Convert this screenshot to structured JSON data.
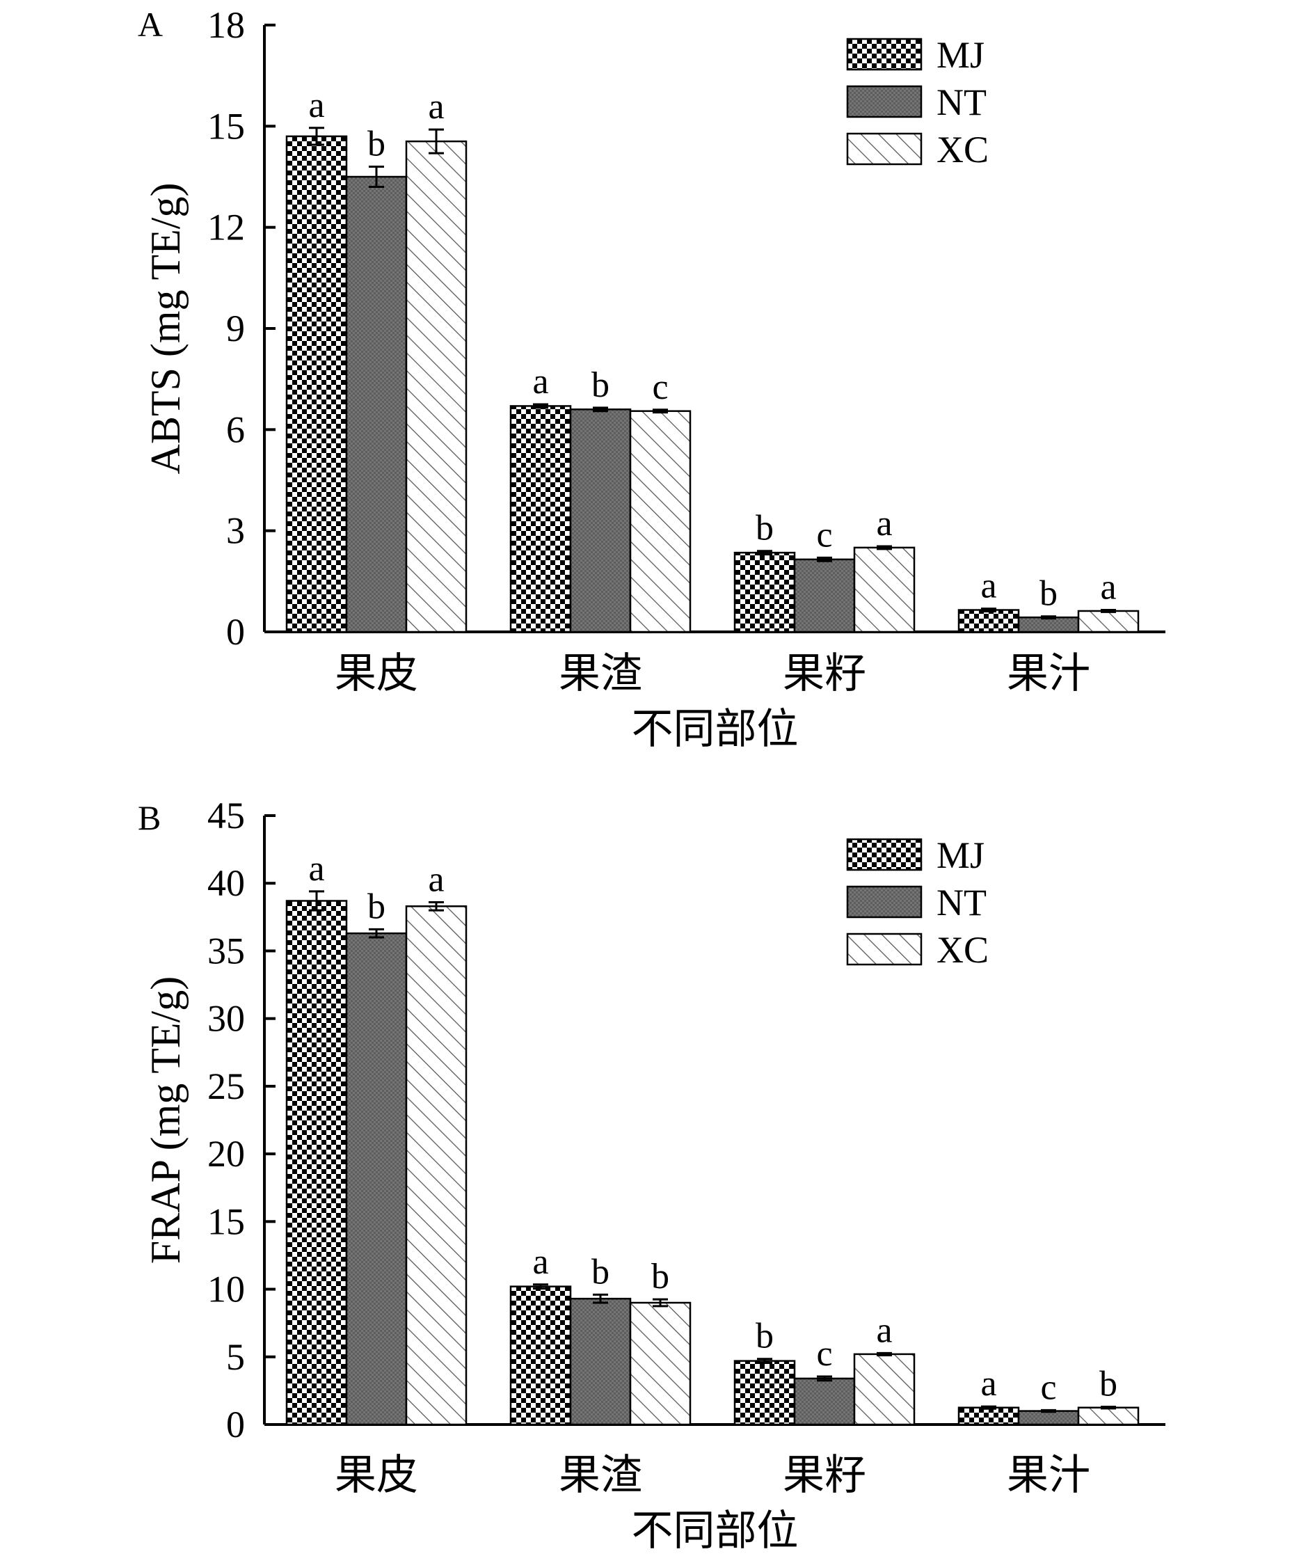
{
  "colors": {
    "ink": "#000000",
    "background": "#ffffff",
    "nt_fill": "#666666",
    "xc_hatch": "#555555"
  },
  "chart_data": [
    {
      "panel_label": "A",
      "type": "bar",
      "title": "",
      "xlabel": "不同部位",
      "ylabel": "ABTS (mg TE/g)",
      "ylim": [
        0,
        18
      ],
      "yticks": [
        0,
        3,
        6,
        9,
        12,
        15,
        18
      ],
      "legend_position": "top-right",
      "categories": [
        "果皮",
        "果渣",
        "果籽",
        "果汁"
      ],
      "series": [
        {
          "name": "MJ",
          "pattern": "checker",
          "values": [
            14.7,
            6.7,
            2.35,
            0.65
          ],
          "errors": [
            0.25,
            0.05,
            0.05,
            0.04
          ],
          "sig": [
            "a",
            "a",
            "b",
            "a"
          ]
        },
        {
          "name": "NT",
          "pattern": "dark",
          "values": [
            13.5,
            6.6,
            2.15,
            0.43
          ],
          "errors": [
            0.3,
            0.05,
            0.05,
            0.03
          ],
          "sig": [
            "b",
            "b",
            "c",
            "b"
          ]
        },
        {
          "name": "XC",
          "pattern": "hatch",
          "values": [
            14.55,
            6.55,
            2.5,
            0.62
          ],
          "errors": [
            0.35,
            0.04,
            0.04,
            0.03
          ],
          "sig": [
            "a",
            "c",
            "a",
            "a"
          ]
        }
      ]
    },
    {
      "panel_label": "B",
      "type": "bar",
      "title": "",
      "xlabel": "不同部位",
      "ylabel": "FRAP (mg TE/g)",
      "ylim": [
        0,
        45
      ],
      "yticks": [
        0,
        5,
        10,
        15,
        20,
        25,
        30,
        35,
        40,
        45
      ],
      "legend_position": "top-right",
      "categories": [
        "果皮",
        "果渣",
        "果籽",
        "果汁"
      ],
      "series": [
        {
          "name": "MJ",
          "pattern": "checker",
          "values": [
            38.7,
            10.2,
            4.7,
            1.25
          ],
          "errors": [
            0.7,
            0.15,
            0.15,
            0.08
          ],
          "sig": [
            "a",
            "a",
            "b",
            "a"
          ]
        },
        {
          "name": "NT",
          "pattern": "dark",
          "values": [
            36.3,
            9.3,
            3.4,
            1.0
          ],
          "errors": [
            0.3,
            0.3,
            0.15,
            0.06
          ],
          "sig": [
            "b",
            "b",
            "c",
            "c"
          ]
        },
        {
          "name": "XC",
          "pattern": "hatch",
          "values": [
            38.3,
            9.0,
            5.2,
            1.25
          ],
          "errors": [
            0.3,
            0.25,
            0.08,
            0.06
          ],
          "sig": [
            "a",
            "b",
            "a",
            "b"
          ]
        }
      ]
    }
  ]
}
